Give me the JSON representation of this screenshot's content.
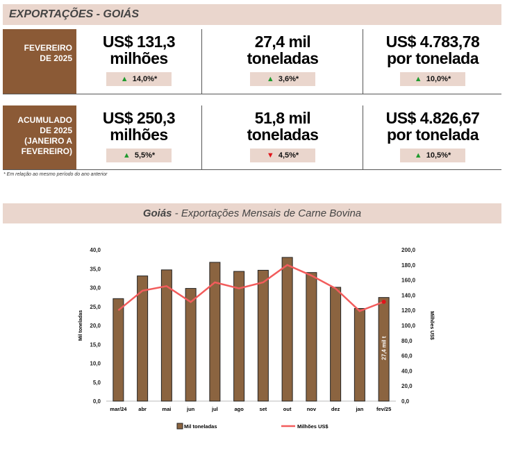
{
  "header": {
    "title": "EXPORTAÇÕES - GOIÁS"
  },
  "rows": [
    {
      "label": [
        "FEVEREIRO",
        "DE 2025"
      ],
      "cells": [
        {
          "line1": "US$ 131,3",
          "line2": "milhões",
          "change": "14,0%*",
          "direction": "up"
        },
        {
          "line1": "27,4 mil",
          "line2": "toneladas",
          "change": "3,6%*",
          "direction": "up"
        },
        {
          "line1": "US$ 4.783,78",
          "line2": "por tonelada",
          "change": "10,0%*",
          "direction": "up"
        }
      ]
    },
    {
      "label": [
        "ACUMULADO",
        "DE 2025",
        "(JANEIRO A",
        "FEVEREIRO)"
      ],
      "cells": [
        {
          "line1": "US$ 250,3",
          "line2": "milhões",
          "change": "5,5%*",
          "direction": "up"
        },
        {
          "line1": "51,8 mil",
          "line2": "toneladas",
          "change": "4,5%*",
          "direction": "down"
        },
        {
          "line1": "US$ 4.826,67",
          "line2": "por tonelada",
          "change": "10,5%*",
          "direction": "up"
        }
      ]
    }
  ],
  "footnote": "* Em relação ao mesmo período do ano anterior",
  "chart_title": {
    "bold": "Goiás",
    "rest": " - Exportações Mensais de Carne Bovina"
  },
  "chart_data": {
    "type": "bar",
    "title": "Goiás - Exportações Mensais de Carne Bovina",
    "categories": [
      "mar/24",
      "abr",
      "mai",
      "jun",
      "jul",
      "ago",
      "set",
      "out",
      "nov",
      "dez",
      "jan",
      "fev/25"
    ],
    "series": [
      {
        "name": "Mil toneladas",
        "type": "bar",
        "axis": "left",
        "color": "#8b6440",
        "values": [
          27.1,
          33.1,
          34.7,
          29.8,
          36.7,
          34.3,
          34.6,
          38.0,
          34.0,
          30.1,
          24.5,
          27.4
        ]
      },
      {
        "name": "Milhões US$",
        "type": "line",
        "axis": "right",
        "color": "#f25c5c",
        "values": [
          120,
          146,
          152,
          131,
          157,
          149,
          157,
          180,
          166,
          149,
          119,
          131.3
        ]
      }
    ],
    "ylabel": "Mil toneladas",
    "y2label": "Milhões US$",
    "ylim": [
      0,
      40
    ],
    "y2lim": [
      0,
      200
    ],
    "yticks": [
      "0,0",
      "5,0",
      "10,0",
      "15,0",
      "20,0",
      "25,0",
      "30,0",
      "35,0",
      "40,0"
    ],
    "y2ticks": [
      "0,0",
      "20,0",
      "40,0",
      "60,0",
      "80,0",
      "100,0",
      "120,0",
      "140,0",
      "160,0",
      "180,0",
      "200,0"
    ],
    "annotation": "27,4 mil t",
    "legend": "bottom",
    "grid": false
  }
}
